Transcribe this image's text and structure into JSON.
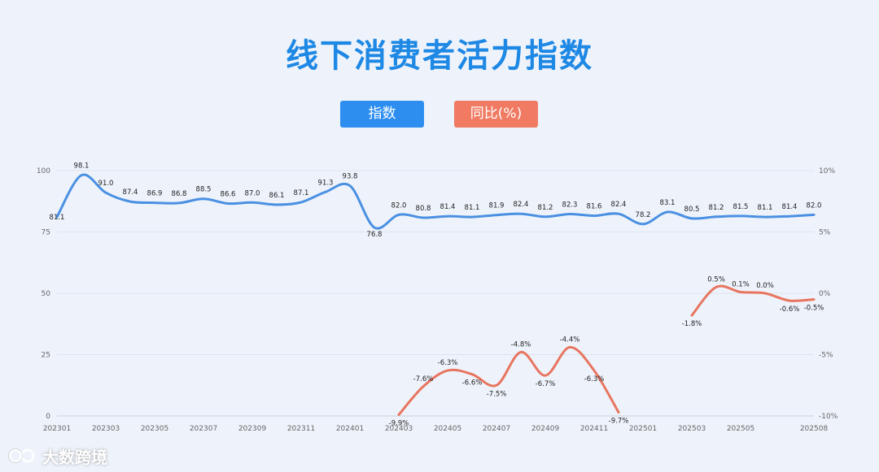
{
  "colors": {
    "index_line": "#4a90e2",
    "yoy_line": "#e87560",
    "grid": "#dde4ef",
    "axis_text": "#666666",
    "label_text": "#222222"
  },
  "chart_data": {
    "type": "line",
    "title": "线下消费者活力指数",
    "legend": [
      "指数",
      "同比(%)"
    ],
    "legend_position": "top-center",
    "x_tick_labels": [
      "202301",
      "202303",
      "202305",
      "202307",
      "202309",
      "202311",
      "202401",
      "202403",
      "202405",
      "202407",
      "202409",
      "202411",
      "202501",
      "202503",
      "202505",
      "202508"
    ],
    "y_left": {
      "ticks": [
        "0",
        "25",
        "50",
        "75",
        "100"
      ],
      "range": [
        0,
        100
      ]
    },
    "y_right": {
      "ticks": [
        "-10%",
        "-5%",
        "0%",
        "5%",
        "10%"
      ],
      "range": [
        -10,
        10
      ]
    },
    "grid": true,
    "series": [
      {
        "name": "指数",
        "axis": "left",
        "points": [
          {
            "x": "202301",
            "y": 81.1,
            "label": "81.1"
          },
          {
            "x": "202302",
            "y": 98.1,
            "label": "98.1"
          },
          {
            "x": "202303",
            "y": 91.0,
            "label": "91.0"
          },
          {
            "x": "202304",
            "y": 87.4,
            "label": "87.4"
          },
          {
            "x": "202305",
            "y": 86.9,
            "label": "86.9"
          },
          {
            "x": "202306",
            "y": 86.8,
            "label": "86.8"
          },
          {
            "x": "202307",
            "y": 88.5,
            "label": "88.5"
          },
          {
            "x": "202308",
            "y": 86.6,
            "label": "86.6"
          },
          {
            "x": "202309",
            "y": 87.0,
            "label": "87.0"
          },
          {
            "x": "202310",
            "y": 86.1,
            "label": "86.1"
          },
          {
            "x": "202311",
            "y": 87.1,
            "label": "87.1"
          },
          {
            "x": "202312",
            "y": 91.3,
            "label": "91.3"
          },
          {
            "x": "202401",
            "y": 93.8,
            "label": "93.8"
          },
          {
            "x": "202402",
            "y": 76.8,
            "label": "76.8"
          },
          {
            "x": "202403",
            "y": 82.0,
            "label": "82.0"
          },
          {
            "x": "202404",
            "y": 80.8,
            "label": "80.8"
          },
          {
            "x": "202405",
            "y": 81.4,
            "label": "81.4"
          },
          {
            "x": "202406",
            "y": 81.1,
            "label": "81.1"
          },
          {
            "x": "202407",
            "y": 81.9,
            "label": "81.9"
          },
          {
            "x": "202408",
            "y": 82.4,
            "label": "82.4"
          },
          {
            "x": "202409",
            "y": 81.2,
            "label": "81.2"
          },
          {
            "x": "202410",
            "y": 82.3,
            "label": "82.3"
          },
          {
            "x": "202411",
            "y": 81.6,
            "label": "81.6"
          },
          {
            "x": "202412",
            "y": 82.4,
            "label": "82.4"
          },
          {
            "x": "202501",
            "y": 78.2,
            "label": "78.2"
          },
          {
            "x": "202502",
            "y": 83.1,
            "label": "83.1"
          },
          {
            "x": "202503",
            "y": 80.5,
            "label": "80.5"
          },
          {
            "x": "202504",
            "y": 81.2,
            "label": "81.2"
          },
          {
            "x": "202505",
            "y": 81.5,
            "label": "81.5"
          },
          {
            "x": "202506",
            "y": 81.1,
            "label": "81.1"
          },
          {
            "x": "202507",
            "y": 81.4,
            "label": "81.4"
          },
          {
            "x": "202508",
            "y": 82.0,
            "label": "82.0"
          }
        ]
      },
      {
        "name": "同比(%)",
        "axis": "right",
        "segments": [
          [
            {
              "x": "202403",
              "y": -9.9,
              "label": "-9.9%"
            },
            {
              "x": "202404",
              "y": -7.6,
              "label": "-7.6%"
            },
            {
              "x": "202405",
              "y": -6.3,
              "label": "-6.3%"
            },
            {
              "x": "202406",
              "y": -6.6,
              "label": "-6.6%"
            },
            {
              "x": "202407",
              "y": -7.5,
              "label": "-7.5%"
            },
            {
              "x": "202408",
              "y": -4.8,
              "label": "-4.8%"
            },
            {
              "x": "202409",
              "y": -6.7,
              "label": "-6.7%"
            },
            {
              "x": "202410",
              "y": -4.4,
              "label": "-4.4%"
            },
            {
              "x": "202411",
              "y": -6.3,
              "label": "-6.3%"
            },
            {
              "x": "202412",
              "y": -9.7,
              "label": "-9.7%"
            }
          ],
          [
            {
              "x": "202503",
              "y": -1.8,
              "label": "-1.8%"
            },
            {
              "x": "202504",
              "y": 0.5,
              "label": "0.5%"
            },
            {
              "x": "202505",
              "y": 0.1,
              "label": "0.1%"
            },
            {
              "x": "202506",
              "y": 0.0,
              "label": "0.0%"
            },
            {
              "x": "202507",
              "y": -0.6,
              "label": "-0.6%"
            },
            {
              "x": "202508",
              "y": -0.5,
              "label": "-0.5%"
            }
          ]
        ]
      }
    ]
  },
  "watermark": {
    "text": "大数跨境"
  }
}
